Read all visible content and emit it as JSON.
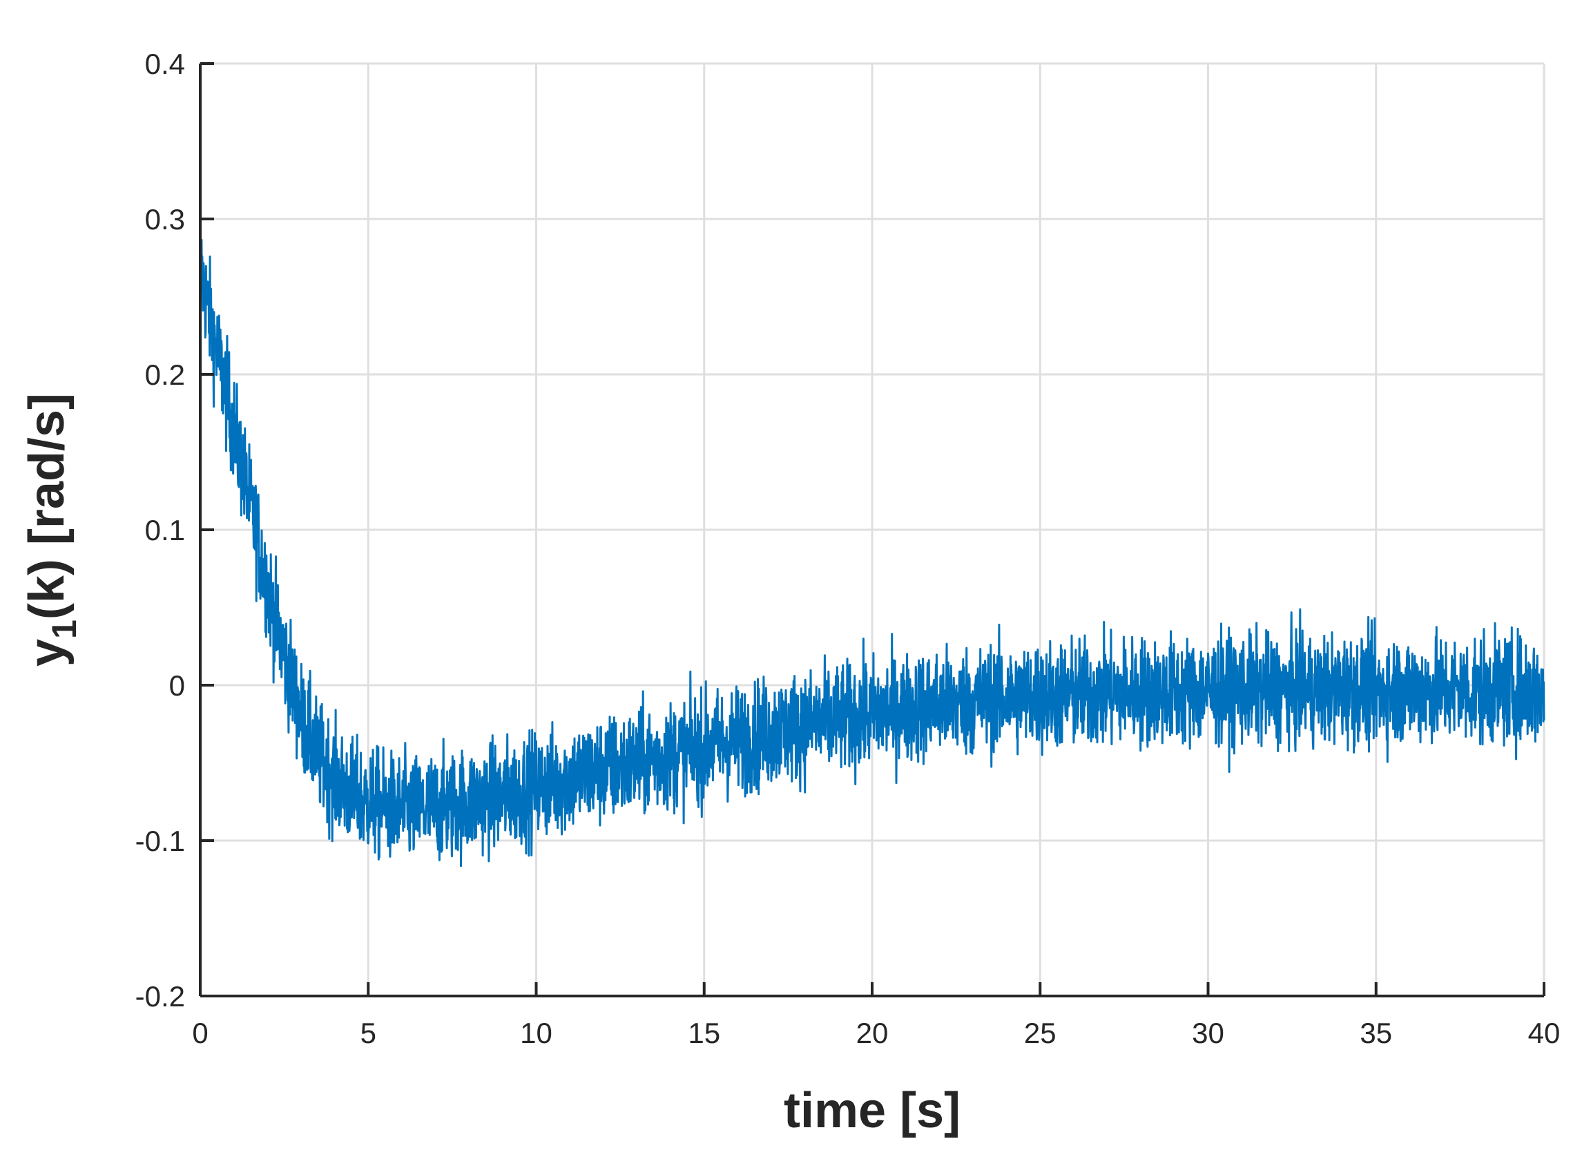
{
  "chart_data": {
    "type": "line",
    "title": "",
    "xlabel": "time [s]",
    "ylabel": {
      "main": "y",
      "subscript": "1",
      "rest": "(k) [rad/s]"
    },
    "xlim": [
      0,
      40
    ],
    "ylim": [
      -0.2,
      0.4
    ],
    "xticks": [
      0,
      5,
      10,
      15,
      20,
      25,
      30,
      35,
      40
    ],
    "xtick_labels": [
      "0",
      "5",
      "10",
      "15",
      "20",
      "25",
      "30",
      "35",
      "40"
    ],
    "yticks": [
      -0.2,
      -0.1,
      0,
      0.1,
      0.2,
      0.3,
      0.4
    ],
    "ytick_labels": [
      "-0.2",
      "-0.1",
      "0",
      "0.1",
      "0.2",
      "0.3",
      "0.4"
    ],
    "grid": true,
    "legend": "none",
    "series": [
      {
        "color": "#0072BD",
        "noise_amplitude_approx": 0.025,
        "x": [
          0,
          0.25,
          0.5,
          0.75,
          1,
          1.25,
          1.5,
          1.75,
          2,
          2.25,
          2.5,
          2.75,
          3,
          3.5,
          4,
          4.5,
          5,
          5.5,
          6,
          6.5,
          7,
          7.5,
          8,
          8.5,
          9,
          9.5,
          10,
          11,
          12,
          13,
          14,
          15,
          16,
          17,
          18,
          19,
          20,
          21,
          22,
          23,
          24,
          25,
          26,
          27,
          28,
          29,
          30,
          31,
          32,
          33,
          34,
          35,
          36,
          37,
          38,
          39,
          40
        ],
        "y": [
          0.27,
          0.24,
          0.215,
          0.19,
          0.165,
          0.14,
          0.115,
          0.09,
          0.065,
          0.04,
          0.02,
          0.0,
          -0.02,
          -0.045,
          -0.06,
          -0.07,
          -0.075,
          -0.078,
          -0.08,
          -0.08,
          -0.079,
          -0.077,
          -0.075,
          -0.073,
          -0.071,
          -0.068,
          -0.065,
          -0.06,
          -0.055,
          -0.05,
          -0.045,
          -0.04,
          -0.035,
          -0.03,
          -0.026,
          -0.022,
          -0.018,
          -0.015,
          -0.012,
          -0.01,
          -0.008,
          -0.007,
          -0.006,
          -0.005,
          -0.004,
          -0.004,
          -0.004,
          -0.003,
          -0.003,
          -0.003,
          -0.003,
          -0.003,
          -0.003,
          -0.003,
          -0.003,
          -0.003,
          -0.003
        ]
      }
    ]
  }
}
